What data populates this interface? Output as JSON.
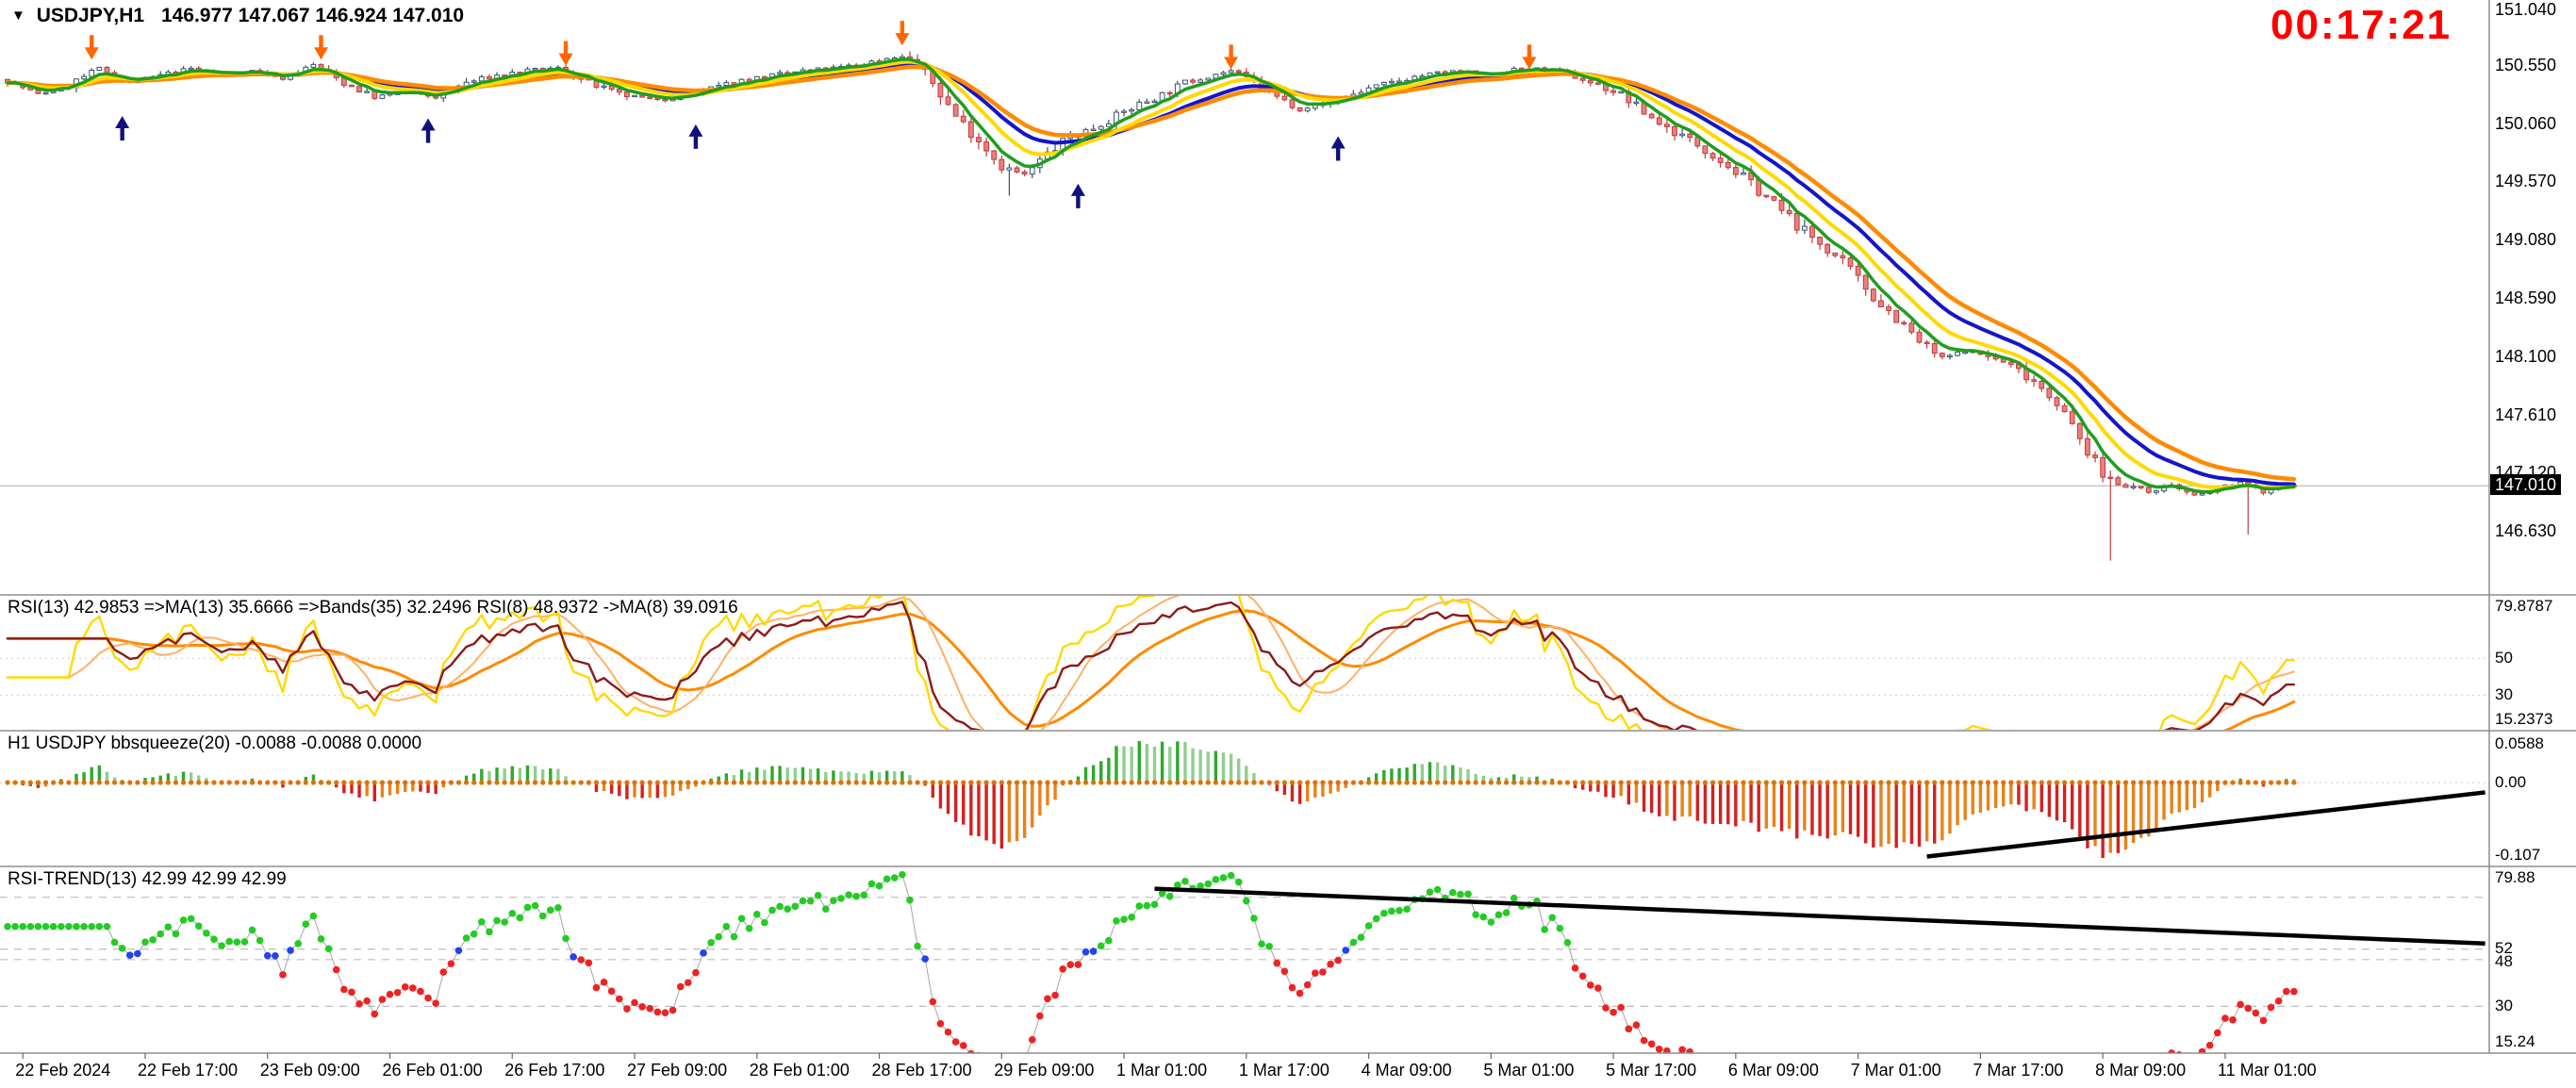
{
  "window": {
    "symbol_period": "USDJPY,H1",
    "menu_icon": "▼"
  },
  "header": {
    "ohlc": "146.977 147.067 146.924 147.010",
    "timer": "00:17:21",
    "timer_color": "#FF0000"
  },
  "price_scale": {
    "labels": [
      "151.040",
      "150.550",
      "150.060",
      "149.570",
      "149.080",
      "148.590",
      "148.100",
      "147.610",
      "147.120",
      "146.630"
    ],
    "top_value": 151.04,
    "step": 0.49,
    "current_price": 147.01,
    "current_price_label": "147.010"
  },
  "panels": {
    "rsi": {
      "label": "RSI(13) 42.9853  =>MA(13) 35.6666  =>Bands(35) 32.2496  RSI(8) 48.9372  ->MA(8) 39.0916",
      "scale_max": "79.8787",
      "scale_min": "15.2373",
      "gridlines": [
        50,
        30
      ],
      "grid_labels": [
        "50",
        "30"
      ],
      "range": [
        15.2373,
        79.8787
      ]
    },
    "squeeze": {
      "label": "H1 USDJPY bbsqueeze(20) -0.0088 -0.0088 0.0000",
      "scale_max": "0.0588",
      "scale_zero": "0.00",
      "scale_min": "-0.107",
      "range": [
        -0.107,
        0.0588
      ]
    },
    "trend": {
      "label": "RSI-TREND(13) 42.99 42.99 42.99",
      "scale_max": "79.88",
      "scale_min": "15.24",
      "gridlines": [
        72,
        52,
        48,
        30
      ],
      "grid_labels": [
        "52",
        "48",
        "30"
      ],
      "range": [
        15.24,
        79.88
      ],
      "thresholds": {
        "up": 52,
        "down": 48
      }
    }
  },
  "time_axis": {
    "labels": [
      "22 Feb 2024",
      "22 Feb 17:00",
      "23 Feb 09:00",
      "26 Feb 01:00",
      "26 Feb 17:00",
      "27 Feb 09:00",
      "28 Feb 01:00",
      "28 Feb 17:00",
      "29 Feb 09:00",
      "1 Mar 01:00",
      "1 Mar 17:00",
      "4 Mar 09:00",
      "5 Mar 01:00",
      "5 Mar 17:00",
      "6 Mar 09:00",
      "7 Mar 01:00",
      "7 Mar 17:00",
      "8 Mar 09:00",
      "11 Mar 01:00"
    ],
    "first_bar": 2,
    "bar_step": 16
  },
  "chart_data": {
    "type": "candlestick",
    "symbol": "USDJPY",
    "timeframe": "H1",
    "title": "USDJPY,H1",
    "bars": 300,
    "ylim": [
      146.1,
      151.1
    ],
    "price_anchors": [
      [
        0,
        150.42
      ],
      [
        4,
        150.3
      ],
      [
        8,
        150.38
      ],
      [
        12,
        150.52
      ],
      [
        16,
        150.4
      ],
      [
        20,
        150.46
      ],
      [
        24,
        150.52
      ],
      [
        28,
        150.47
      ],
      [
        32,
        150.5
      ],
      [
        36,
        150.44
      ],
      [
        40,
        150.55
      ],
      [
        44,
        150.4
      ],
      [
        48,
        150.28
      ],
      [
        52,
        150.32
      ],
      [
        56,
        150.28
      ],
      [
        60,
        150.4
      ],
      [
        64,
        150.46
      ],
      [
        68,
        150.5
      ],
      [
        72,
        150.52
      ],
      [
        76,
        150.4
      ],
      [
        80,
        150.3
      ],
      [
        84,
        150.26
      ],
      [
        88,
        150.28
      ],
      [
        92,
        150.35
      ],
      [
        96,
        150.42
      ],
      [
        100,
        150.46
      ],
      [
        104,
        150.5
      ],
      [
        108,
        150.52
      ],
      [
        112,
        150.56
      ],
      [
        116,
        150.62
      ],
      [
        118,
        150.6
      ],
      [
        121,
        150.4
      ],
      [
        124,
        150.12
      ],
      [
        127,
        149.92
      ],
      [
        130,
        149.7
      ],
      [
        133,
        149.62
      ],
      [
        136,
        149.8
      ],
      [
        139,
        149.95
      ],
      [
        142,
        150.02
      ],
      [
        145,
        150.12
      ],
      [
        148,
        150.22
      ],
      [
        151,
        150.3
      ],
      [
        154,
        150.4
      ],
      [
        157,
        150.46
      ],
      [
        160,
        150.5
      ],
      [
        163,
        150.4
      ],
      [
        166,
        150.28
      ],
      [
        169,
        150.18
      ],
      [
        172,
        150.22
      ],
      [
        175,
        150.28
      ],
      [
        178,
        150.35
      ],
      [
        181,
        150.4
      ],
      [
        184,
        150.45
      ],
      [
        187,
        150.48
      ],
      [
        190,
        150.5
      ],
      [
        193,
        150.46
      ],
      [
        196,
        150.5
      ],
      [
        199,
        150.52
      ],
      [
        202,
        150.5
      ],
      [
        205,
        150.45
      ],
      [
        208,
        150.38
      ],
      [
        211,
        150.3
      ],
      [
        214,
        150.15
      ],
      [
        217,
        150.02
      ],
      [
        220,
        149.92
      ],
      [
        223,
        149.8
      ],
      [
        226,
        149.65
      ],
      [
        229,
        149.5
      ],
      [
        232,
        149.32
      ],
      [
        235,
        149.15
      ],
      [
        238,
        149.0
      ],
      [
        241,
        148.82
      ],
      [
        244,
        148.6
      ],
      [
        247,
        148.42
      ],
      [
        250,
        148.22
      ],
      [
        253,
        148.08
      ],
      [
        256,
        148.15
      ],
      [
        259,
        148.1
      ],
      [
        262,
        148.02
      ],
      [
        265,
        147.9
      ],
      [
        268,
        147.72
      ],
      [
        271,
        147.4
      ],
      [
        274,
        147.1
      ],
      [
        277,
        147.02
      ],
      [
        280,
        146.96
      ],
      [
        283,
        147.02
      ],
      [
        286,
        146.92
      ],
      [
        289,
        146.98
      ],
      [
        292,
        147.04
      ],
      [
        295,
        146.96
      ],
      [
        298,
        147.01
      ],
      [
        299,
        147.01
      ]
    ],
    "long_wicks": [
      [
        131,
        149.45
      ],
      [
        275,
        146.38
      ],
      [
        293,
        146.6
      ]
    ],
    "signals": {
      "sell": [
        [
          11,
          150.8
        ],
        [
          41,
          150.8
        ],
        [
          73,
          150.75
        ],
        [
          117,
          150.92
        ],
        [
          160,
          150.72
        ],
        [
          199,
          150.72
        ]
      ],
      "buy": [
        [
          15,
          150.12
        ],
        [
          55,
          150.1
        ],
        [
          90,
          150.05
        ],
        [
          140,
          149.55
        ],
        [
          174,
          149.95
        ]
      ]
    },
    "signal_colors": {
      "sell": "#FF6600",
      "buy": "#10107E"
    },
    "ma_periods": {
      "green": 5,
      "yellow": 10,
      "orange": 21,
      "blue": 16
    },
    "ma_colors": {
      "green": "#1F9E1F",
      "yellow": "#FFD900",
      "orange": "#FF8A00",
      "blue": "#1515C8"
    },
    "candle_colors": {
      "bull_fill": "#FFFFFF",
      "bull_stroke": "#3A5070",
      "bear_fill": "#E98080",
      "bear_stroke": "#C23B3B"
    },
    "rsi_line_colors": {
      "rsi13": "#8B1A1A",
      "rsi8": "#FFD900",
      "ma13": "#FF8A00",
      "ma8": "#FFB066"
    },
    "squeeze_colors": {
      "pos_up": "#2EA82E",
      "pos_down": "#90CE90",
      "neg_down": "#D42020",
      "neg_up": "#E8821A",
      "dot": "#E07000"
    },
    "trend_dot_colors": {
      "up": "#22CC22",
      "down": "#EE2222",
      "mid": "#2244EE"
    },
    "trendlines": {
      "squeeze": [
        [
          251,
          -0.105
        ],
        [
          324,
          -0.014
        ]
      ],
      "trend": [
        [
          150,
          75.3
        ],
        [
          324,
          54.2
        ]
      ]
    }
  }
}
